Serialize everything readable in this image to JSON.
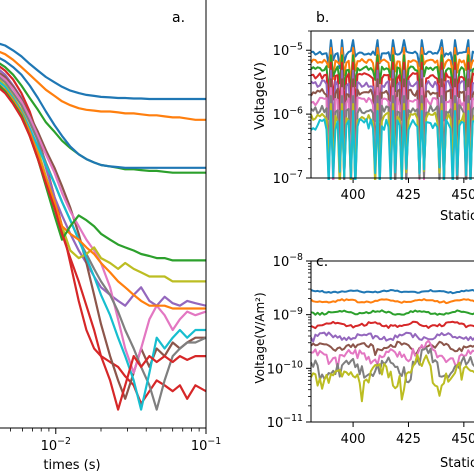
{
  "palette": [
    "#1f77b4",
    "#ff7f0e",
    "#2ca02c",
    "#d62728",
    "#9467bd",
    "#8c564b",
    "#e377c2",
    "#7f7f7f",
    "#bcbd22",
    "#17becf"
  ],
  "chart_data": [
    {
      "panel": "a.",
      "type": "line",
      "scale": "log-log",
      "xlabel": "times (s)",
      "ylabel": "",
      "xlim": [
        0.004,
        0.1
      ],
      "ylim": [
        1e-13,
        1e-06
      ],
      "x_ticks": [
        {
          "value": 0.01,
          "base": "10",
          "exp": "−2"
        },
        {
          "value": 0.1,
          "base": "10",
          "exp": "−1"
        }
      ],
      "x": [
        0.004,
        0.0046,
        0.0052,
        0.0059,
        0.0067,
        0.0076,
        0.0086,
        0.0098,
        0.011,
        0.0125,
        0.0142,
        0.016,
        0.018,
        0.02,
        0.023,
        0.026,
        0.029,
        0.033,
        0.037,
        0.042,
        0.047,
        0.053,
        0.06,
        0.067,
        0.075,
        0.085,
        0.1
      ],
      "series": [
        {
          "values": [
            2e-07,
            1.8e-07,
            1.5e-07,
            1.2e-07,
            9e-08,
            7e-08,
            5.5e-08,
            4.5e-08,
            3.8e-08,
            3.3e-08,
            3e-08,
            2.8e-08,
            2.7e-08,
            2.6e-08,
            2.55e-08,
            2.5e-08,
            2.5e-08,
            2.45e-08,
            2.45e-08,
            2.4e-08,
            2.4e-08,
            2.4e-08,
            2.4e-08,
            2.4e-08,
            2.4e-08,
            2.4e-08,
            2.4e-08
          ]
        },
        {
          "values": [
            1.5e-07,
            1.3e-07,
            1.05e-07,
            8e-08,
            6e-08,
            4.5e-08,
            3.4e-08,
            2.7e-08,
            2.2e-08,
            1.9e-08,
            1.7e-08,
            1.6e-08,
            1.55e-08,
            1.5e-08,
            1.5e-08,
            1.45e-08,
            1.4e-08,
            1.4e-08,
            1.35e-08,
            1.3e-08,
            1.3e-08,
            1.25e-08,
            1.2e-08,
            1.2e-08,
            1.15e-08,
            1.1e-08,
            1.1e-08
          ]
        },
        {
          "values": [
            1e-07,
            8e-08,
            6e-08,
            4e-08,
            2.5e-08,
            1.6e-08,
            1e-08,
            7e-09,
            5e-09,
            3.8e-09,
            3e-09,
            2.5e-09,
            2.2e-09,
            2e-09,
            1.9e-09,
            1.8e-09,
            1.7e-09,
            1.7e-09,
            1.65e-09,
            1.6e-09,
            1.6e-09,
            1.55e-09,
            1.5e-09,
            1.5e-09,
            1.5e-09,
            1.5e-09,
            1.5e-09
          ]
        },
        {
          "values": [
            9e-08,
            7e-08,
            5e-08,
            3e-08,
            1.5e-08,
            6e-09,
            2e-09,
            6e-10,
            2e-10,
            5e-11,
            1.2e-11,
            4e-12,
            2e-12,
            1.5e-12,
            1.2e-12,
            1e-12,
            7e-13,
            5e-13,
            2.5e-13,
            4e-13,
            6e-13,
            5e-13,
            4e-13,
            5e-13,
            3e-13,
            5e-13,
            4e-13
          ]
        },
        {
          "values": [
            8e-08,
            6e-08,
            4e-08,
            2.5e-08,
            1.2e-08,
            5e-09,
            1.8e-09,
            6e-10,
            3e-10,
            1.5e-10,
            8e-11,
            5e-11,
            3e-11,
            2e-11,
            1.5e-11,
            1.2e-11,
            1e-11,
            1.5e-11,
            2e-11,
            1.2e-11,
            1e-11,
            1.4e-11,
            1.1e-11,
            1e-11,
            1.2e-11,
            1.1e-11,
            1e-11
          ]
        },
        {
          "values": [
            7e-08,
            5.5e-08,
            3.8e-08,
            2.4e-08,
            1.3e-08,
            7e-09,
            3.5e-09,
            1.8e-09,
            9e-10,
            4e-10,
            1.5e-10,
            5e-11,
            1.5e-11,
            5e-12,
            1.5e-12,
            6e-13,
            3e-13,
            8e-13,
            2e-12,
            1e-12,
            2e-12,
            1.5e-12,
            2.5e-12,
            2e-12,
            2.5e-12,
            3e-12,
            3e-12
          ]
        },
        {
          "values": [
            6.5e-08,
            5e-08,
            3.5e-08,
            2.2e-08,
            1.2e-08,
            6e-09,
            3e-09,
            1.5e-09,
            7e-10,
            3.5e-10,
            2e-10,
            1.2e-10,
            8e-11,
            5e-11,
            2e-11,
            6e-12,
            2e-12,
            8e-13,
            2e-12,
            6e-12,
            1e-11,
            7e-12,
            4e-12,
            6e-12,
            8e-12,
            7e-12,
            8e-12
          ]
        },
        {
          "values": [
            6e-08,
            4.5e-08,
            3e-08,
            1.9e-08,
            1e-08,
            5e-09,
            2.2e-09,
            1e-09,
            5e-10,
            2.5e-10,
            1.2e-10,
            7e-11,
            4e-11,
            2.5e-11,
            1.5e-11,
            8e-12,
            4e-12,
            2e-12,
            1e-12,
            5e-13,
            2e-13,
            6e-13,
            1.5e-12,
            2e-12,
            2.5e-12,
            2.5e-12,
            3e-12
          ]
        },
        {
          "values": [
            5.5e-08,
            4e-08,
            2.6e-08,
            1.6e-08,
            8e-09,
            3.5e-09,
            1.3e-09,
            5e-10,
            2e-10,
            8e-11,
            6e-11,
            7e-11,
            9e-11,
            6e-11,
            5e-11,
            4e-11,
            5e-11,
            4e-11,
            3.5e-11,
            3e-11,
            3e-11,
            3e-11,
            2.5e-11,
            2.5e-11,
            2.5e-11,
            2.5e-11,
            2.5e-11
          ]
        },
        {
          "values": [
            5e-08,
            3.8e-08,
            2.5e-08,
            1.5e-08,
            8e-09,
            4e-09,
            2e-09,
            1e-09,
            5e-10,
            2.5e-10,
            1.2e-10,
            6e-11,
            3e-11,
            1.5e-11,
            7e-12,
            3e-12,
            1.5e-12,
            6e-13,
            2e-13,
            8e-13,
            3e-12,
            2e-12,
            3e-12,
            4e-12,
            3e-12,
            4e-12,
            4e-12
          ]
        },
        {
          "values": [
            1.2e-07,
            1e-07,
            8e-08,
            6e-08,
            4e-08,
            2.5e-08,
            1.5e-08,
            9e-09,
            6e-09,
            4e-09,
            3e-09,
            2.5e-09,
            2.2e-09,
            2e-09,
            1.9e-09,
            1.85e-09,
            1.8e-09,
            1.8e-09,
            1.8e-09,
            1.8e-09,
            1.8e-09,
            1.8e-09,
            1.8e-09,
            1.8e-09,
            1.8e-09,
            1.8e-09,
            1.8e-09
          ]
        },
        {
          "values": [
            4.5e-08,
            3.4e-08,
            2.3e-08,
            1.4e-08,
            7e-09,
            3e-09,
            1.2e-09,
            5e-10,
            2e-10,
            1.5e-10,
            1.2e-10,
            9e-11,
            7e-11,
            5e-11,
            3.5e-11,
            2.5e-11,
            2e-11,
            1.5e-11,
            1.2e-11,
            1e-11,
            1e-11,
            1e-11,
            9e-12,
            9e-12,
            9e-12,
            9e-12,
            9e-12
          ]
        },
        {
          "values": [
            4.5e-08,
            3.2e-08,
            2.1e-08,
            1.3e-08,
            6e-09,
            2.5e-09,
            9e-10,
            3e-10,
            1.2e-10,
            2e-10,
            3e-10,
            2.5e-10,
            2e-10,
            1.5e-10,
            1.2e-10,
            1e-10,
            9e-11,
            8e-11,
            7e-11,
            6.5e-11,
            6e-11,
            6e-11,
            5.5e-11,
            5.5e-11,
            5.5e-11,
            5.5e-11,
            5.5e-11
          ]
        },
        {
          "values": [
            4e-08,
            3e-08,
            2e-08,
            1.2e-08,
            6e-09,
            2.5e-09,
            1e-09,
            4e-10,
            1.5e-10,
            6e-11,
            2.5e-11,
            1e-11,
            4e-12,
            1.5e-12,
            6e-13,
            2e-13,
            5e-13,
            1.5e-12,
            1e-12,
            1.5e-12,
            1.2e-12,
            1.5e-12,
            1.2e-12,
            1.5e-12,
            1.3e-12,
            1.5e-12,
            1.5e-12
          ]
        }
      ]
    },
    {
      "panel": "b.",
      "type": "line",
      "scale": "linear-log",
      "xlabel": "Station",
      "ylabel": "Voltage(V)",
      "xlim": [
        381,
        460
      ],
      "ylim": [
        1e-07,
        2e-05
      ],
      "x_ticks": [
        {
          "value": 400,
          "label": "400"
        },
        {
          "value": 425,
          "label": "425"
        },
        {
          "value": 450,
          "label": "450"
        }
      ],
      "y_ticks": [
        {
          "value": 1e-05,
          "base": "10",
          "exp": "−5"
        },
        {
          "value": 1e-06,
          "base": "10",
          "exp": "−6"
        },
        {
          "value": 1e-07,
          "base": "10",
          "exp": "−7"
        }
      ],
      "station_start": 381,
      "station_step": 1,
      "series_levels": [
        9e-06,
        6.8e-06,
        5.2e-06,
        4e-06,
        3e-06,
        2.2e-06,
        1.6e-06,
        1.2e-06,
        9e-07,
        7e-07
      ],
      "spike_stations": [
        390,
        395,
        400,
        411,
        418,
        423,
        431,
        440,
        446,
        452
      ],
      "dip_factors": [
        0.85,
        0.7,
        0.55,
        0.35,
        0.2,
        0.1,
        0.06,
        0.08,
        0.12,
        0.15
      ]
    },
    {
      "panel": "c.",
      "type": "line",
      "scale": "linear-log",
      "xlabel": "Station",
      "ylabel": "Voltage(V/Am²)",
      "xlim": [
        381,
        460
      ],
      "ylim": [
        1e-11,
        1e-08
      ],
      "x_ticks": [
        {
          "value": 400,
          "label": "400"
        },
        {
          "value": 425,
          "label": "425"
        },
        {
          "value": 450,
          "label": "450"
        }
      ],
      "y_ticks": [
        {
          "value": 1e-08,
          "base": "10",
          "exp": "−8"
        },
        {
          "value": 1e-09,
          "base": "10",
          "exp": "−9"
        },
        {
          "value": 1e-10,
          "base": "10",
          "exp": "−10"
        },
        {
          "value": 1e-11,
          "base": "10",
          "exp": "−11"
        }
      ],
      "station_start": 381,
      "station_step": 1,
      "series_levels": [
        2.7e-09,
        1.8e-09,
        1.1e-09,
        6.5e-10,
        4e-10,
        2.6e-10,
        1.7e-10,
        1.1e-10,
        8e-11
      ],
      "wiggle": [
        0.04,
        0.05,
        0.06,
        0.08,
        0.1,
        0.14,
        0.2,
        0.3,
        0.35
      ]
    }
  ]
}
